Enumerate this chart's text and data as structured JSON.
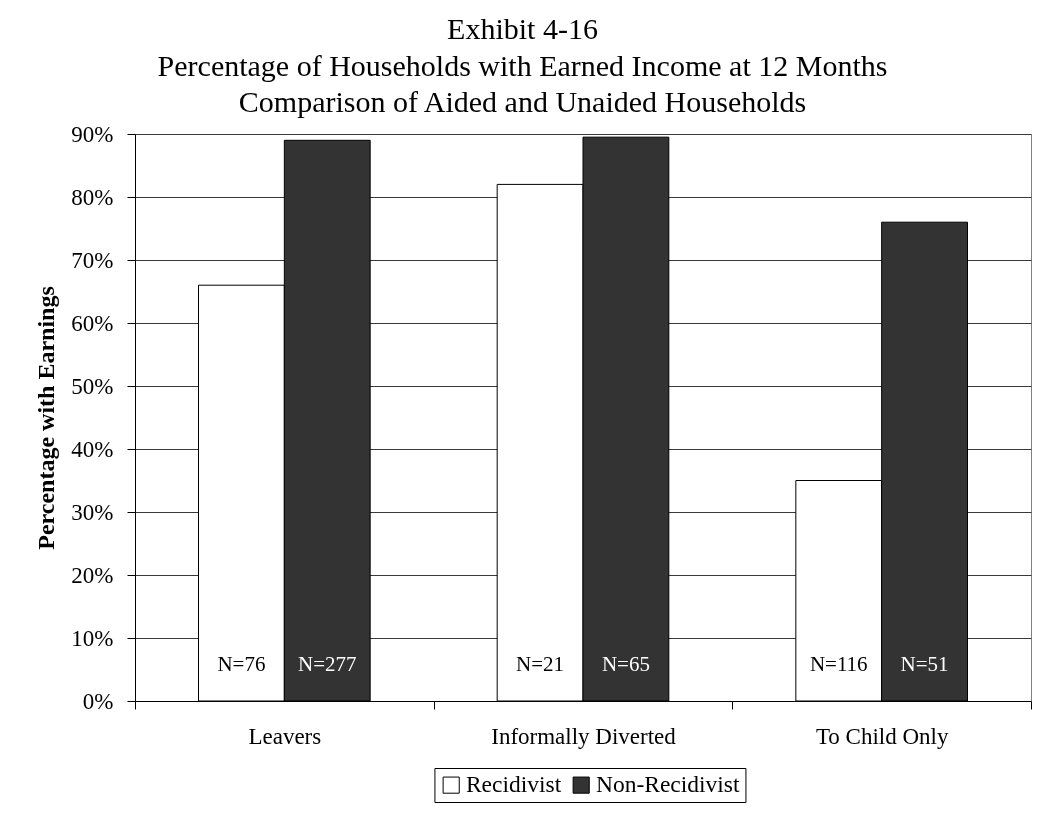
{
  "chart_data": {
    "type": "bar",
    "title": "Exhibit 4-16\nPercentage of Households with Earned Income at 12 Months\nComparison of Aided and Unaided Households",
    "ylabel": "Percentage with Earnings",
    "categories": [
      "Leavers",
      "Informally Diverted",
      "To Child Only"
    ],
    "series": [
      {
        "name": "Recidivist",
        "color": "#ffffff",
        "values": [
          66,
          82,
          35
        ]
      },
      {
        "name": "Non-Recidivist",
        "color": "#333333",
        "values": [
          89,
          89.5,
          76
        ]
      }
    ],
    "annotations": [
      "N=76",
      "N=277",
      "N=21",
      "N=65",
      "N=116",
      "N=51"
    ],
    "ylim": [
      0,
      90
    ],
    "yticks": [
      {
        "value": 0,
        "label": "0%"
      },
      {
        "value": 10,
        "label": "10%"
      },
      {
        "value": 20,
        "label": "20%"
      },
      {
        "value": 30,
        "label": "30%"
      },
      {
        "value": 40,
        "label": "40%"
      },
      {
        "value": 50,
        "label": "50%"
      },
      {
        "value": 60,
        "label": "60%"
      },
      {
        "value": 70,
        "label": "70%"
      },
      {
        "value": 80,
        "label": "80%"
      },
      {
        "value": 90,
        "label": "90%"
      }
    ],
    "grid": "y",
    "legend": "bottom"
  }
}
